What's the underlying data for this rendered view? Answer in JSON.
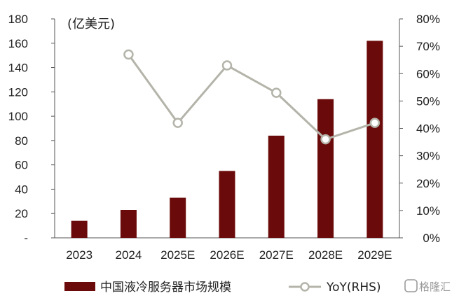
{
  "chart_data": {
    "type": "bar+line",
    "unit_label": "(亿美元)",
    "categories": [
      "2023",
      "2024",
      "2025E",
      "2026E",
      "2027E",
      "2028E",
      "2029E"
    ],
    "series": [
      {
        "name": "中国液冷服务器市场规模",
        "type": "bar",
        "axis": "left",
        "color": "#6b0a0a",
        "values": [
          14,
          23,
          33,
          55,
          84,
          114,
          162
        ]
      },
      {
        "name": "YoY(RHS)",
        "type": "line",
        "axis": "right",
        "color": "#b4b4aa",
        "values": [
          null,
          67,
          42,
          63,
          53,
          36,
          42
        ]
      }
    ],
    "left_axis": {
      "ylim": [
        0,
        180
      ],
      "ticks": [
        "-",
        "20",
        "40",
        "60",
        "80",
        "100",
        "120",
        "140",
        "160",
        "180"
      ]
    },
    "right_axis": {
      "ylim": [
        0,
        80
      ],
      "ticks": [
        "0%",
        "10%",
        "20%",
        "30%",
        "40%",
        "50%",
        "60%",
        "70%",
        "80%"
      ]
    },
    "grid": false,
    "legend_position": "bottom"
  },
  "watermark": "格隆汇"
}
